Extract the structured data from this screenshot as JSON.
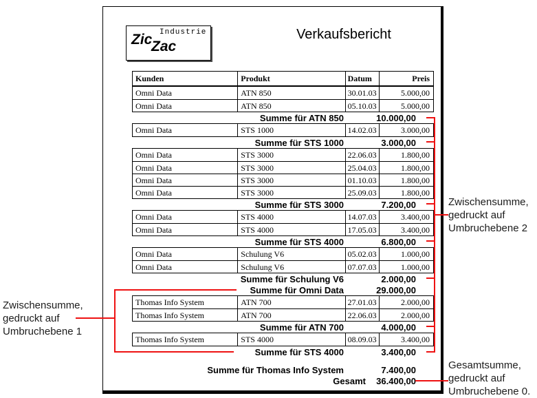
{
  "page_title": "Verkaufsbericht",
  "logo": {
    "word1": "Zic",
    "word2": "Zac",
    "subtitle": "Industrie"
  },
  "table": {
    "columns": [
      "Kunden",
      "Produkt",
      "Datum",
      "Preis"
    ],
    "sections": [
      {
        "type": "rows",
        "rows": [
          [
            "Omni Data",
            "ATN 850",
            "30.01.03",
            "5.000,00"
          ],
          [
            "Omni Data",
            "ATN 850",
            "05.10.03",
            "5.000,00"
          ]
        ]
      },
      {
        "type": "sum",
        "label": "Summe für ATN 850",
        "value": "10.000,00",
        "level": 2
      },
      {
        "type": "rows",
        "rows": [
          [
            "Omni Data",
            "STS 1000",
            "14.02.03",
            "3.000,00"
          ]
        ]
      },
      {
        "type": "sum",
        "label": "Summe für STS 1000",
        "value": "3.000,00",
        "level": 2
      },
      {
        "type": "rows",
        "rows": [
          [
            "Omni Data",
            "STS 3000",
            "22.06.03",
            "1.800,00"
          ],
          [
            "Omni Data",
            "STS 3000",
            "25.04.03",
            "1.800,00"
          ],
          [
            "Omni Data",
            "STS 3000",
            "01.10.03",
            "1.800,00"
          ],
          [
            "Omni Data",
            "STS 3000",
            "25.09.03",
            "1.800,00"
          ]
        ]
      },
      {
        "type": "sum",
        "label": "Summe für STS 3000",
        "value": "7.200,00",
        "level": 2
      },
      {
        "type": "rows",
        "rows": [
          [
            "Omni Data",
            "STS 4000",
            "14.07.03",
            "3.400,00"
          ],
          [
            "Omni Data",
            "STS 4000",
            "17.05.03",
            "3.400,00"
          ]
        ]
      },
      {
        "type": "sum",
        "label": "Summe für STS 4000",
        "value": "6.800,00",
        "level": 2
      },
      {
        "type": "rows",
        "rows": [
          [
            "Omni Data",
            "Schulung V6",
            "05.02.03",
            "1.000,00"
          ],
          [
            "Omni Data",
            "Schulung V6",
            "07.07.03",
            "1.000,00"
          ]
        ]
      },
      {
        "type": "sum",
        "label": "Summe für Schulung V6",
        "value": "2.000,00",
        "level": 2
      },
      {
        "type": "sum",
        "label": "Summe für Omni Data",
        "value": "29.000,00",
        "level": 1
      },
      {
        "type": "rows",
        "rows": [
          [
            "Thomas Info System",
            "ATN 700",
            "27.01.03",
            "2.000,00"
          ],
          [
            "Thomas Info System",
            "ATN 700",
            "22.06.03",
            "2.000,00"
          ]
        ]
      },
      {
        "type": "sum",
        "label": "Summe für ATN 700",
        "value": "4.000,00",
        "level": 2
      },
      {
        "type": "rows",
        "rows": [
          [
            "Thomas Info System",
            "STS 4000",
            "08.09.03",
            "3.400,00"
          ]
        ]
      },
      {
        "type": "sum",
        "label": "Summe für STS 4000",
        "value": "3.400,00",
        "level": 2
      },
      {
        "type": "sum",
        "label": "Summe für Thomas Info System",
        "value": "7.400,00",
        "level": 1,
        "gap_before": true
      },
      {
        "type": "sum",
        "label": "Gesamt",
        "value": "36.400,00",
        "level": 0
      }
    ]
  },
  "annotations": {
    "level2": {
      "lines": [
        "Zwischensumme,",
        "gedruckt auf",
        "Umbruchebene 2"
      ]
    },
    "level1": {
      "lines": [
        "Zwischensumme,",
        "gedruckt auf",
        "Umbruchebene 1"
      ]
    },
    "level0": {
      "lines": [
        "Gesamtsumme,",
        "gedruckt auf",
        "Umbruchebene 0."
      ]
    }
  },
  "colors": {
    "connector_red": "#ee1111"
  }
}
